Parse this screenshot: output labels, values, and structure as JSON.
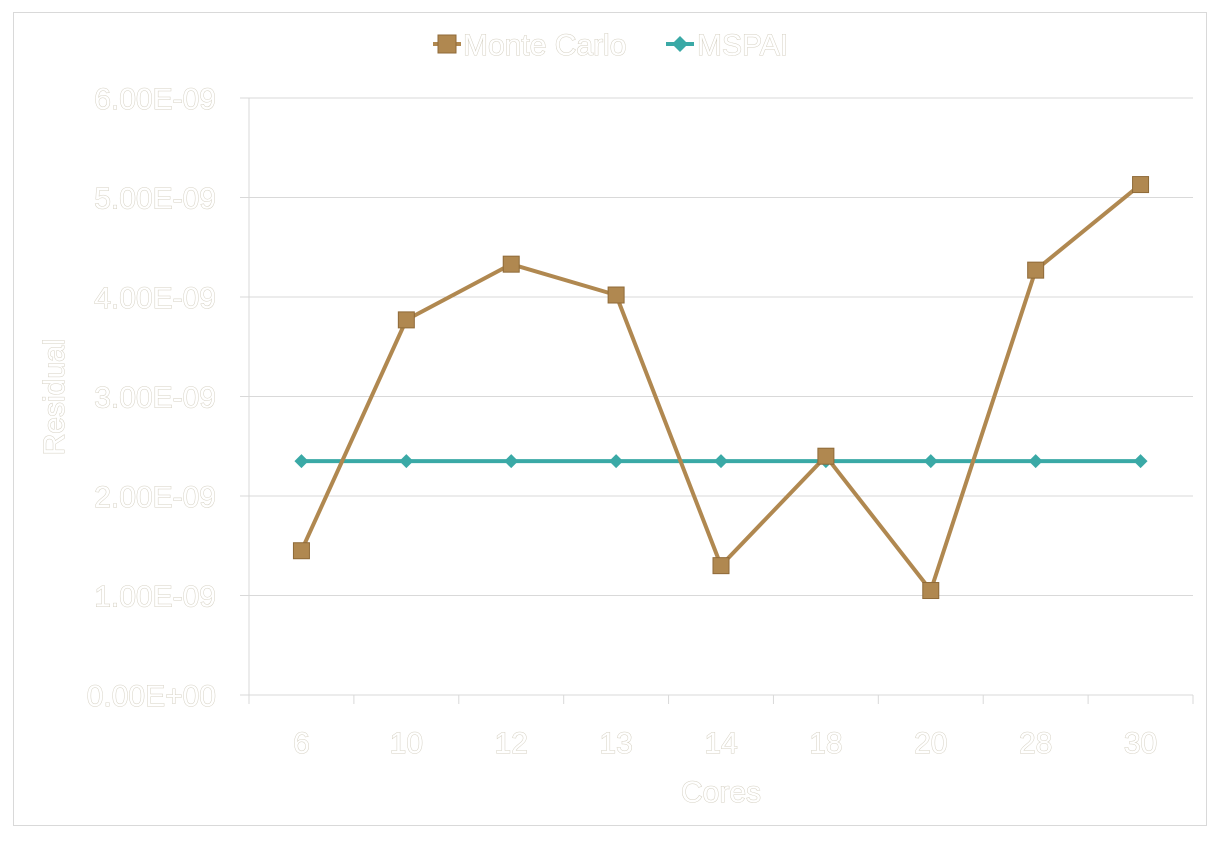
{
  "chart_data": {
    "type": "line",
    "title": "",
    "xlabel": "Cores",
    "ylabel": "Residual",
    "categories": [
      "6",
      "10",
      "12",
      "13",
      "14",
      "18",
      "20",
      "28",
      "30"
    ],
    "ylim": [
      0,
      6e-09
    ],
    "yticks": [
      0,
      1e-09,
      2e-09,
      3e-09,
      4e-09,
      5e-09,
      6e-09
    ],
    "ytick_labels": [
      "0.00E+00",
      "1.00E-09",
      "2.00E-09",
      "3.00E-09",
      "4.00E-09",
      "5.00E-09",
      "6.00E-09"
    ],
    "grid": true,
    "legend_position": "top",
    "series": [
      {
        "name": "Monte Carlo",
        "color": "#b08850",
        "marker": "square",
        "values": [
          1.45e-09,
          3.77e-09,
          4.33e-09,
          4.02e-09,
          1.3e-09,
          2.4e-09,
          1.05e-09,
          4.27e-09,
          5.13e-09
        ]
      },
      {
        "name": "MSPAI",
        "color": "#3aa9a6",
        "marker": "diamond",
        "values": [
          2.35e-09,
          2.35e-09,
          2.35e-09,
          2.35e-09,
          2.35e-09,
          2.35e-09,
          2.35e-09,
          2.35e-09,
          2.35e-09
        ]
      }
    ]
  }
}
